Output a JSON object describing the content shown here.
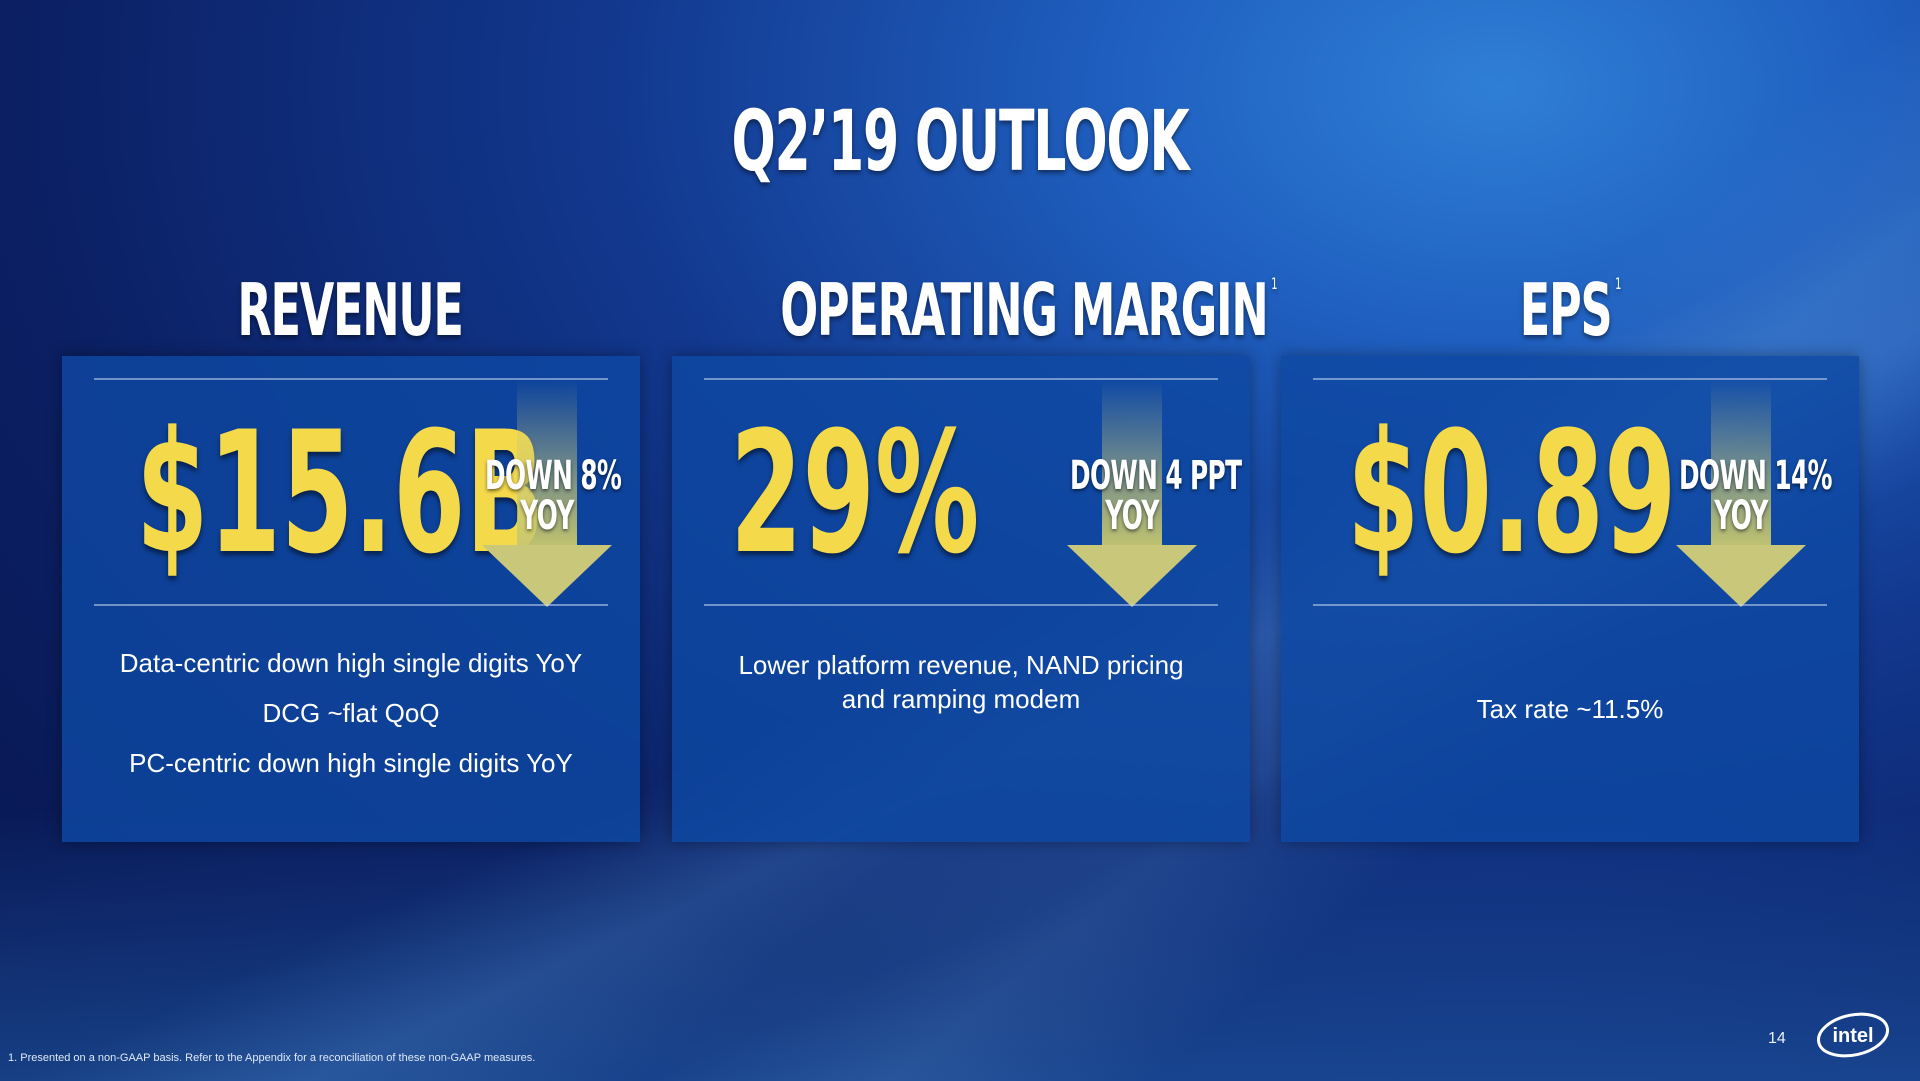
{
  "title": "Q2’19 OUTLOOK",
  "columns": [
    {
      "heading": "REVENUE",
      "footnote_mark": "",
      "value": "$15.6B",
      "change_line1": "DOWN 8%",
      "change_line2": "YOY",
      "notes": [
        "Data-centric down high single digits YoY",
        "DCG ~flat QoQ",
        "PC-centric down high single digits YoY"
      ]
    },
    {
      "heading": "OPERATING MARGIN",
      "footnote_mark": "1",
      "value": "29%",
      "change_line1": "DOWN 4 PPT",
      "change_line2": "YOY",
      "notes": [
        "Lower platform revenue, NAND pricing",
        "and ramping modem"
      ]
    },
    {
      "heading": "EPS",
      "footnote_mark": "1",
      "value": "$0.89",
      "change_line1": "DOWN 14%",
      "change_line2": "YOY",
      "notes": [
        "Tax rate ~11.5%"
      ]
    }
  ],
  "footnote": "1. Presented on a non-GAAP basis. Refer to the Appendix for a reconciliation of these non-GAAP measures.",
  "page_number": "14",
  "logo_text": "intel",
  "colors": {
    "value_yellow": "#f4d94a",
    "panel_blue": "#0e48a2",
    "arrow": "#c9c77a"
  }
}
